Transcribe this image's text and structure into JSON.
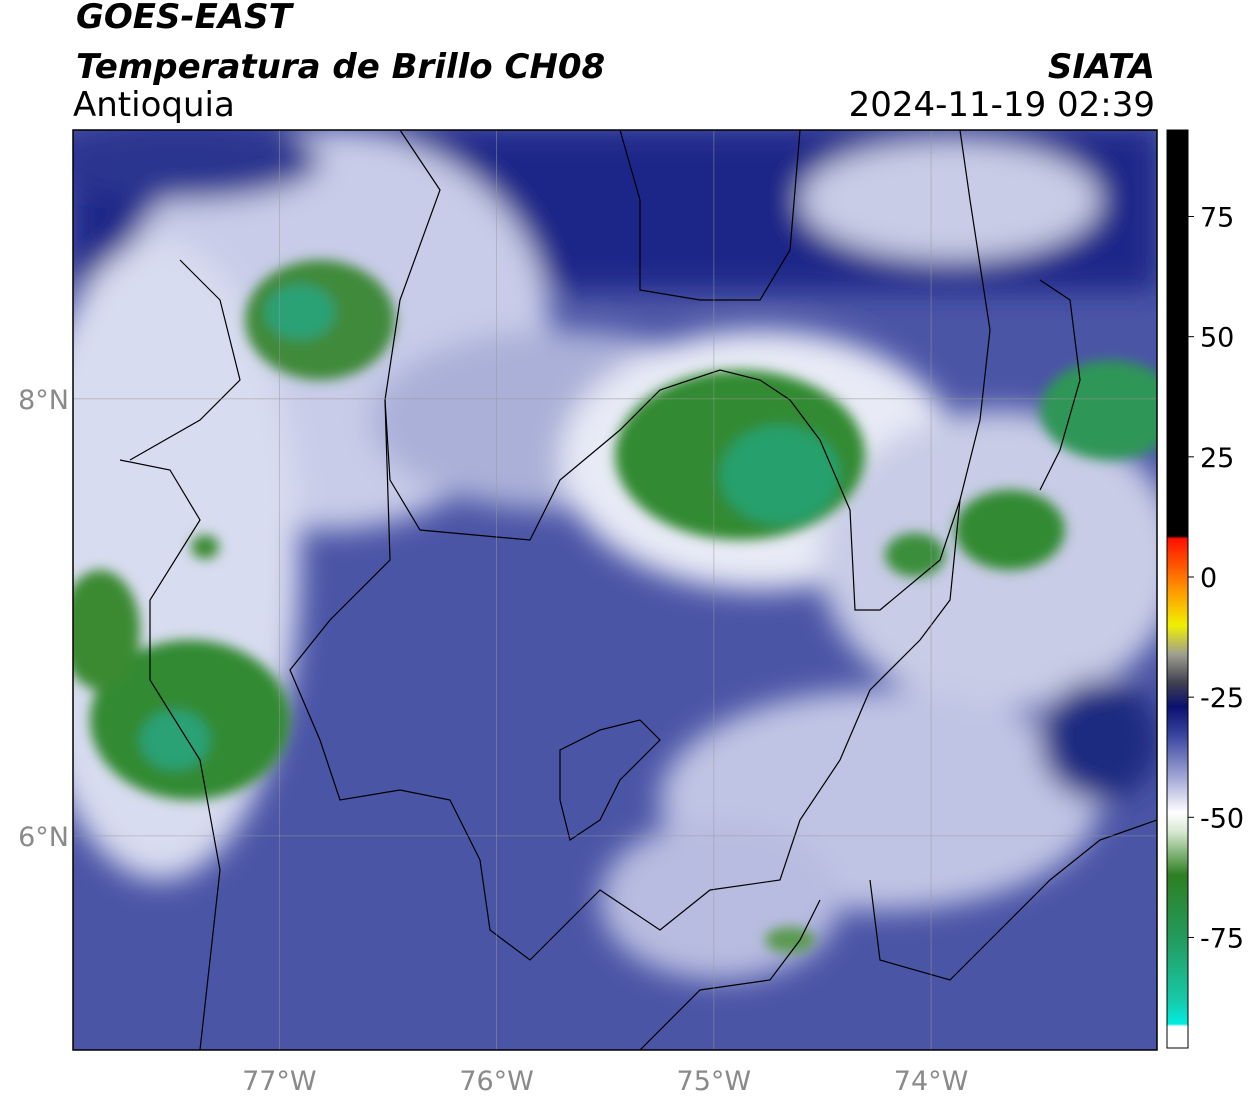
{
  "chart_data": {
    "type": "map",
    "title": "GOES-EAST",
    "subtitle": "Temperatura de Brillo CH08",
    "region": "Antioquia",
    "source": "SIATA",
    "datetime": "2024-11-19 02:39",
    "xlim": [
      -77.95,
      -72.96
    ],
    "ylim": [
      5.02,
      9.23
    ],
    "xticks": [
      {
        "value": -77,
        "label": "77°W"
      },
      {
        "value": -76,
        "label": "76°W"
      },
      {
        "value": -75,
        "label": "75°W"
      },
      {
        "value": -74,
        "label": "74°W"
      }
    ],
    "yticks": [
      {
        "value": 6,
        "label": "6°N"
      },
      {
        "value": 8,
        "label": "8°N"
      }
    ],
    "grid": true,
    "colorbar": {
      "lim": [
        -98,
        93
      ],
      "ticks": [
        -75,
        -50,
        -25,
        0,
        25,
        50,
        75
      ],
      "stops": [
        {
          "value": -98,
          "color": "#ffffff"
        },
        {
          "value": -93.5,
          "color": "#ffffff"
        },
        {
          "value": -93,
          "color": "#00ece0"
        },
        {
          "value": -88,
          "color": "#17c9a8"
        },
        {
          "value": -75,
          "color": "#239a5c"
        },
        {
          "value": -62,
          "color": "#2e7f22"
        },
        {
          "value": -53,
          "color": "#d8e8d0"
        },
        {
          "value": -49,
          "color": "#ffffff"
        },
        {
          "value": -42,
          "color": "#a6aad8"
        },
        {
          "value": -33,
          "color": "#3a46a0"
        },
        {
          "value": -27,
          "color": "#0a1070"
        },
        {
          "value": -22,
          "color": "#404050"
        },
        {
          "value": -16,
          "color": "#a0a090"
        },
        {
          "value": -10,
          "color": "#f0f000"
        },
        {
          "value": -3,
          "color": "#ff9a00"
        },
        {
          "value": 8,
          "color": "#ff1000"
        },
        {
          "value": 8.5,
          "color": "#000000"
        },
        {
          "value": 93,
          "color": "#000000"
        }
      ]
    }
  }
}
